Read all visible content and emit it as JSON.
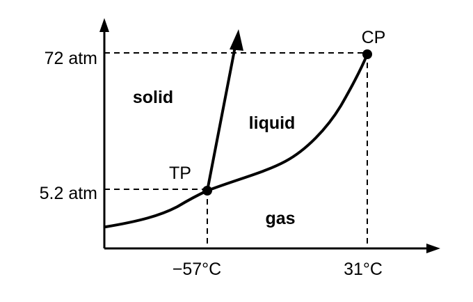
{
  "y_ticks": {
    "high": "72 atm",
    "low": "5.2 atm"
  },
  "x_ticks": {
    "left": "−57°C",
    "right": "31°C"
  },
  "regions": {
    "solid": "solid",
    "liquid": "liquid",
    "gas": "gas"
  },
  "points": {
    "triple": "TP",
    "critical": "CP"
  },
  "colors": {
    "ink": "#000000",
    "background": "#ffffff"
  }
}
